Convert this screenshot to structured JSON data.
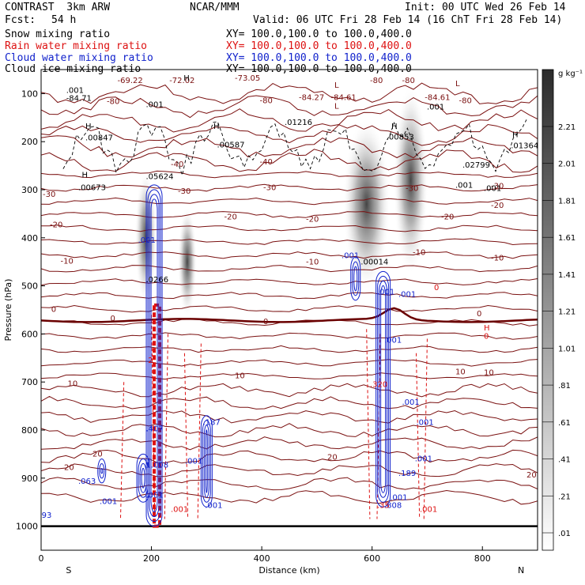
{
  "header": {
    "project": "CONTRAST  3km ARW",
    "center": "NCAR/MMM",
    "init": "Init: 00 UTC Wed 26 Feb 14",
    "fcst_label": "Fcst:",
    "fcst_value": "54 h",
    "valid": "Valid: 06 UTC Fri 28 Feb 14 (16 ChT Fri 28 Feb 14)"
  },
  "legend": [
    {
      "name": "Snow mixing ratio",
      "xy": "XY= 100.0,100.0 to 100.0,400.0",
      "color": "#000000"
    },
    {
      "name": "Rain water mixing ratio",
      "xy": "XY= 100.0,100.0 to 100.0,400.0",
      "color": "#dd1111"
    },
    {
      "name": "Cloud water mixing ratio",
      "xy": "XY= 100.0,100.0 to 100.0,400.0",
      "color": "#1122cc"
    },
    {
      "name": "Cloud ice mixing ratio",
      "xy": "XY= 100.0,100.0 to 100.0,400.0",
      "color": "#000000"
    }
  ],
  "colors": {
    "temperature_contour": "#7a1010",
    "rain": "#dd1111",
    "cloud_water": "#1122cc",
    "cloud_ice": "#000000"
  },
  "chart_data": {
    "type": "heatmap",
    "xlabel": "Distance (km)",
    "ylabel": "Pressure (hPa)",
    "xlim": [
      0,
      900
    ],
    "ylim": [
      1050,
      50
    ],
    "x_ticks": [
      0,
      200,
      400,
      600,
      800
    ],
    "y_ticks": [
      100,
      200,
      300,
      400,
      500,
      600,
      700,
      800,
      900,
      1000
    ],
    "x_end_labels": {
      "left": "S",
      "right": "N"
    },
    "colorbar": {
      "unit": "g kg⁻¹",
      "labels": [
        "2.21",
        "2.01",
        "1.81",
        "1.61",
        "1.41",
        "1.21",
        "1.01",
        ".81",
        ".61",
        ".41",
        ".21",
        ".01"
      ]
    },
    "snow_maxima": [
      {
        "x": 190,
        "p": 400
      },
      {
        "x": 265,
        "p": 450
      },
      {
        "x": 590,
        "p": 330
      },
      {
        "x": 670,
        "p": 280
      }
    ],
    "temperature_contour_levels": [
      -80,
      -73.05,
      -72.02,
      -69.22,
      -40,
      -30,
      -20,
      -10,
      0,
      10,
      20
    ],
    "temperature_labels": [
      "-69.22",
      "-72.02",
      "-73.05",
      "-80",
      "-80",
      "-84.27",
      "-84.61",
      "-84.61",
      "-80",
      "-80",
      "-80",
      "-40",
      "-40",
      "-30",
      "-30",
      "-30",
      "-30",
      "-30",
      "-20",
      "-20",
      "-20",
      "-20",
      "-20",
      "-10",
      "-10",
      "-10",
      "-10",
      "0",
      "0",
      "0",
      "0",
      "10",
      "10",
      "10",
      "10",
      "20",
      "20",
      "20",
      "20"
    ],
    "markers": [
      "H",
      "H",
      "H",
      "H",
      "H",
      "H",
      "L",
      "L",
      "L"
    ],
    "ice_labels": [
      ".00847",
      ".001",
      "-84.71",
      ".001",
      ".00587",
      ".01216",
      ".00853",
      ".001",
      ".01364",
      ".02799",
      ".001",
      ".001",
      ".00673",
      ".05624",
      ".00014",
      ".0266"
    ],
    "cloud_labels": [
      ".001",
      ".001",
      ".001",
      ".063",
      ".001",
      ".93",
      ".001",
      ".001",
      ".001",
      ".001",
      ".001",
      ".189",
      ".808",
      ".001",
      ".001",
      ".001",
      ".001",
      "1.008",
      ".407",
      ".187"
    ],
    "rain_labels": [
      "0",
      "H",
      ".320",
      ".001",
      ".35",
      ".001",
      "0",
      "2"
    ]
  }
}
